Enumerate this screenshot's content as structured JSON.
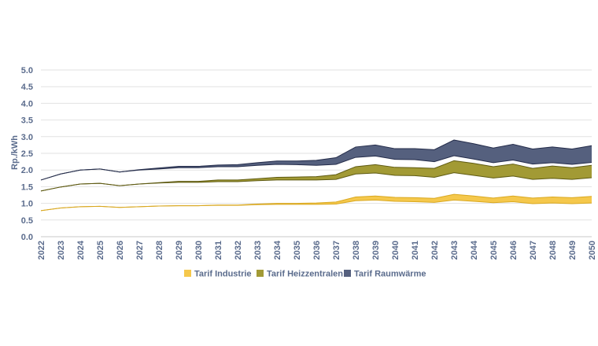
{
  "chart_data": {
    "type": "area",
    "title": "",
    "xlabel": "",
    "ylabel": "Rp./kWh",
    "ylim": [
      0,
      5
    ],
    "yticks": [
      "0.0",
      "0.5",
      "1.0",
      "1.5",
      "2.0",
      "2.5",
      "3.0",
      "3.5",
      "4.0",
      "4.5",
      "5.0"
    ],
    "grid": true,
    "legend_position": "bottom",
    "x": [
      "2022",
      "2023",
      "2024",
      "2025",
      "2026",
      "2027",
      "2028",
      "2029",
      "2030",
      "2031",
      "2032",
      "2033",
      "2034",
      "2035",
      "2036",
      "2037",
      "2038",
      "2039",
      "2040",
      "2041",
      "2042",
      "2043",
      "2044",
      "2045",
      "2046",
      "2047",
      "2048",
      "2049",
      "2050"
    ],
    "series": [
      {
        "name": "Tarif Industrie",
        "color": "#f5c84c",
        "edge_color": "#d9a820",
        "lower": [
          0.78,
          0.86,
          0.9,
          0.91,
          0.88,
          0.9,
          0.92,
          0.93,
          0.93,
          0.94,
          0.94,
          0.96,
          0.97,
          0.97,
          0.97,
          0.98,
          1.08,
          1.1,
          1.06,
          1.05,
          1.03,
          1.1,
          1.06,
          1.02,
          1.05,
          0.99,
          1.01,
          0.99,
          1.01
        ],
        "upper": [
          0.78,
          0.86,
          0.9,
          0.91,
          0.88,
          0.9,
          0.92,
          0.93,
          0.93,
          0.95,
          0.95,
          0.98,
          1.0,
          1.0,
          1.01,
          1.04,
          1.19,
          1.22,
          1.18,
          1.17,
          1.15,
          1.27,
          1.22,
          1.16,
          1.22,
          1.16,
          1.19,
          1.17,
          1.21
        ]
      },
      {
        "name": "Tarif Heizzentralen",
        "color": "#a29a35",
        "edge_color": "#5e5a12",
        "lower": [
          1.37,
          1.49,
          1.58,
          1.6,
          1.53,
          1.58,
          1.61,
          1.63,
          1.63,
          1.65,
          1.65,
          1.68,
          1.7,
          1.7,
          1.7,
          1.72,
          1.88,
          1.91,
          1.84,
          1.83,
          1.78,
          1.92,
          1.84,
          1.76,
          1.82,
          1.72,
          1.75,
          1.72,
          1.77
        ],
        "upper": [
          1.37,
          1.49,
          1.58,
          1.6,
          1.53,
          1.58,
          1.62,
          1.66,
          1.66,
          1.7,
          1.7,
          1.74,
          1.78,
          1.79,
          1.8,
          1.86,
          2.1,
          2.16,
          2.08,
          2.07,
          2.05,
          2.28,
          2.2,
          2.1,
          2.18,
          2.05,
          2.12,
          2.07,
          2.14
        ]
      },
      {
        "name": "Tarif Raumwärme",
        "color": "#55607e",
        "edge_color": "#242c4a",
        "lower": [
          1.7,
          1.88,
          2.0,
          2.03,
          1.94,
          2.0,
          2.03,
          2.07,
          2.07,
          2.1,
          2.1,
          2.14,
          2.17,
          2.16,
          2.14,
          2.17,
          2.38,
          2.42,
          2.32,
          2.31,
          2.25,
          2.43,
          2.33,
          2.22,
          2.3,
          2.18,
          2.22,
          2.17,
          2.23
        ],
        "upper": [
          1.7,
          1.88,
          2.0,
          2.03,
          1.94,
          2.01,
          2.06,
          2.11,
          2.11,
          2.15,
          2.16,
          2.22,
          2.27,
          2.27,
          2.29,
          2.37,
          2.69,
          2.75,
          2.64,
          2.64,
          2.61,
          2.9,
          2.79,
          2.66,
          2.77,
          2.63,
          2.69,
          2.63,
          2.73
        ]
      }
    ]
  }
}
